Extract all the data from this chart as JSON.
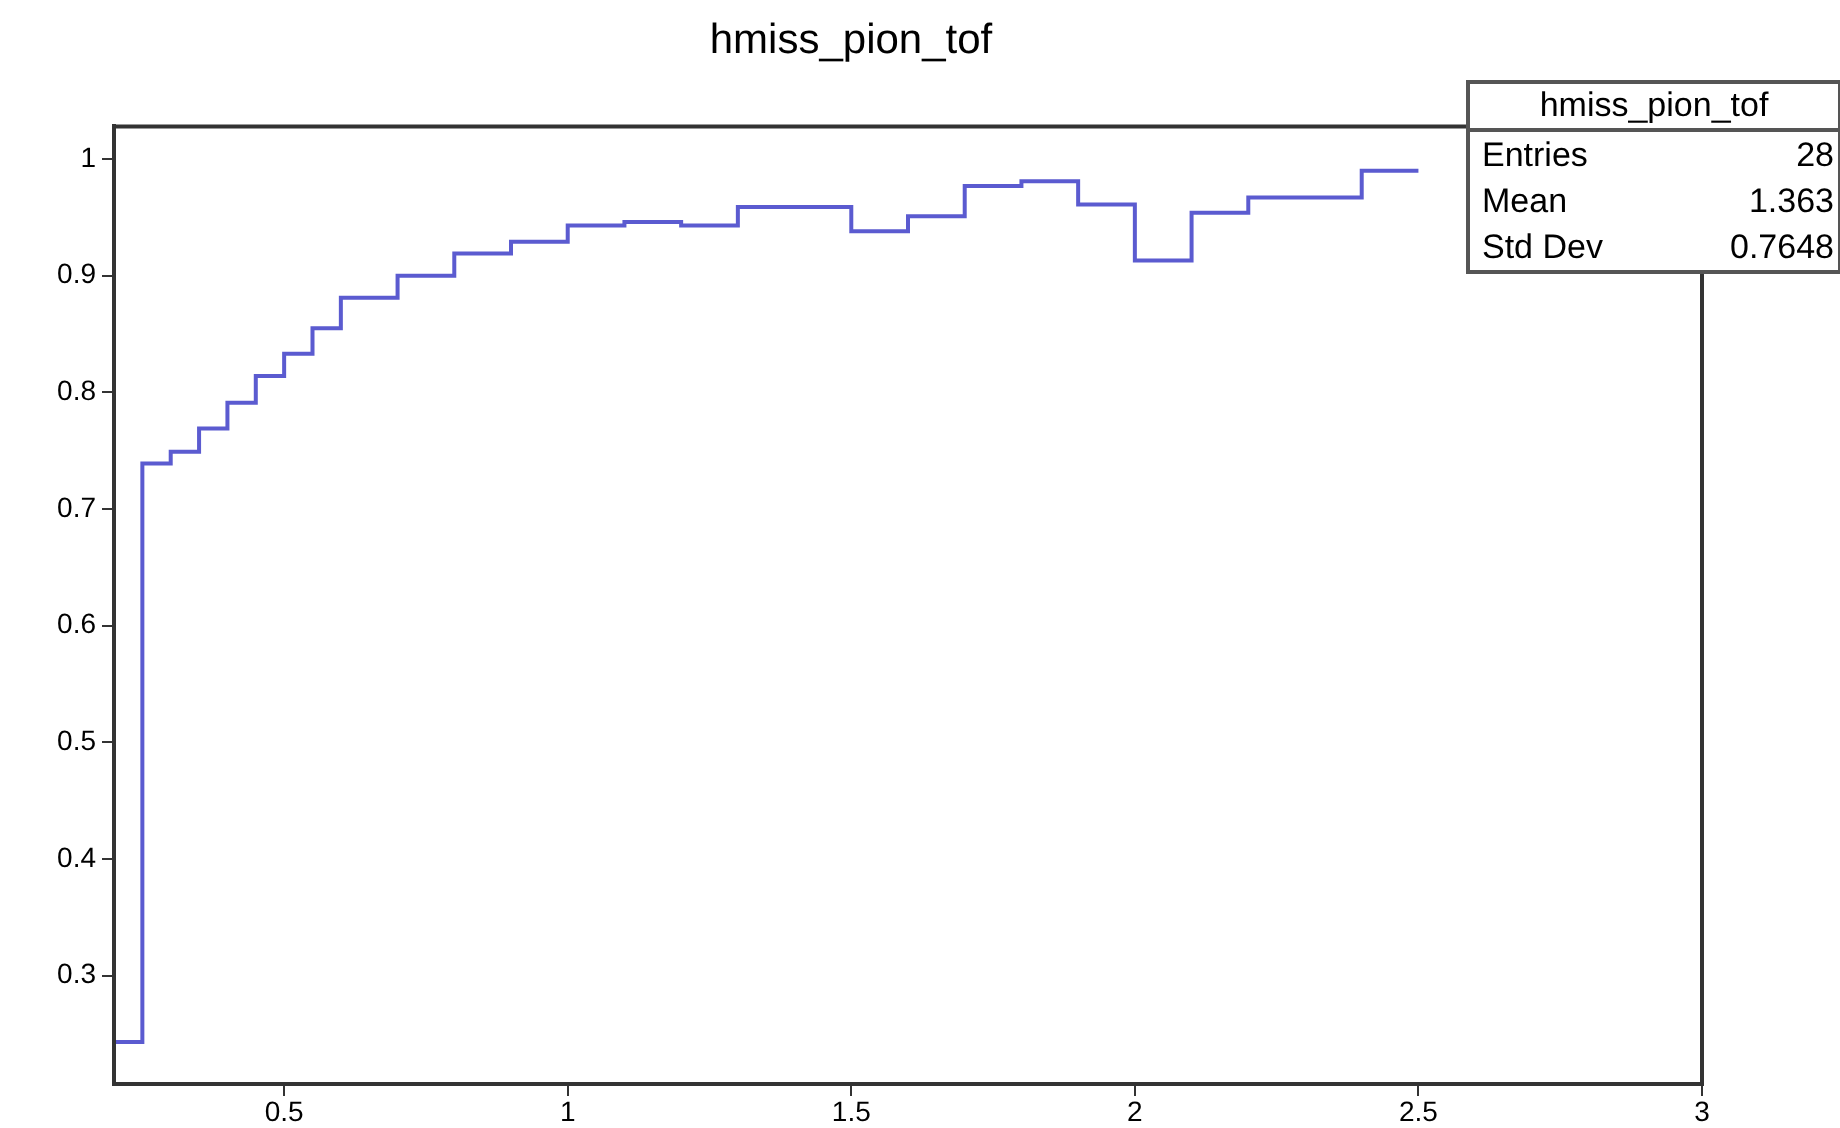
{
  "chart_data": {
    "type": "histogram",
    "title": "hmiss_pion_tof",
    "bins": [
      0.2,
      0.25,
      0.3,
      0.35,
      0.4,
      0.45,
      0.5,
      0.55,
      0.6,
      0.7,
      0.8,
      0.9,
      1.0,
      1.1,
      1.2,
      1.3,
      1.4,
      1.5,
      1.6,
      1.7,
      1.8,
      1.9,
      2.0,
      2.1,
      2.2,
      2.3,
      2.4,
      2.5
    ],
    "values": [
      0.243,
      0.739,
      0.749,
      0.769,
      0.791,
      0.814,
      0.833,
      0.855,
      0.881,
      0.9,
      0.919,
      0.929,
      0.943,
      0.946,
      0.943,
      0.959,
      0.959,
      0.938,
      0.951,
      0.977,
      0.981,
      0.961,
      0.913,
      0.954,
      0.967,
      0.967,
      0.99
    ],
    "color": "#5b5bd0",
    "xlim": [
      0.2,
      3
    ],
    "xticks": [
      0.5,
      1,
      1.5,
      2,
      2.5,
      3
    ],
    "ylim": [
      0.207,
      1.028
    ],
    "yticks": [
      0.3,
      0.4,
      0.5,
      0.6,
      0.7,
      0.8,
      0.9,
      1
    ],
    "grid": false,
    "legend": false,
    "annotations": [
      "hmiss_pion_tof",
      "Entries",
      "28",
      "Mean",
      "1.363",
      "Std Dev",
      "0.7648"
    ]
  }
}
